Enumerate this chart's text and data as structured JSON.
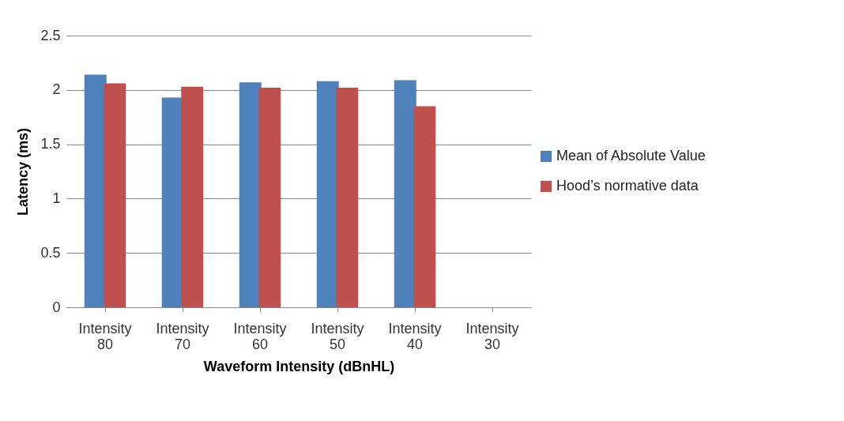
{
  "chart_data": {
    "type": "bar",
    "xlabel": "Waveform Intensity (dBnHL)",
    "ylabel": "Latency (ms)",
    "categories": [
      "Intensity 80",
      "Intensity 70",
      "Intensity 60",
      "Intensity 50",
      "Intensity 40",
      "Intensity 30"
    ],
    "series": [
      {
        "name": "Mean of Absolute Value",
        "color": "#4f81bd",
        "values": [
          2.14,
          1.93,
          2.07,
          2.08,
          2.09,
          null
        ]
      },
      {
        "name": "Hood’s normative data",
        "color": "#c0504d",
        "values": [
          2.06,
          2.03,
          2.02,
          2.02,
          1.85,
          null
        ]
      }
    ],
    "ylim": [
      0,
      2.5
    ],
    "yticks": [
      0,
      0.5,
      1,
      1.5,
      2,
      2.5
    ],
    "grid": "y",
    "legend": "right"
  }
}
